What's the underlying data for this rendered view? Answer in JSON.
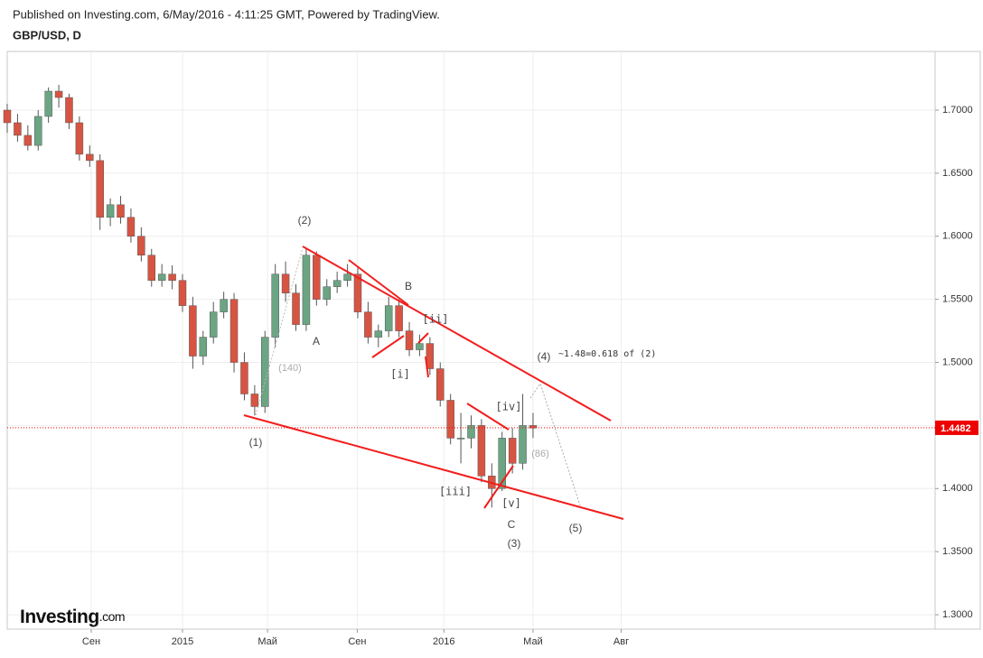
{
  "header": {
    "published": "Published on Investing.com, 6/May/2016 - 4:11:25 GMT, Powered by TradingView.",
    "symbol": "GBP/USD, D"
  },
  "logo": {
    "brand": "Investing",
    "suffix": ".com"
  },
  "chart_data": {
    "type": "candlestick",
    "up_color": "#6ba583",
    "down_color": "#d75442",
    "x": [
      0,
      2,
      4,
      6,
      8,
      10,
      12,
      14,
      16,
      18,
      20,
      22,
      24,
      26,
      28,
      30,
      32,
      34,
      36,
      38,
      40,
      42,
      44,
      46,
      48,
      50,
      52,
      54,
      56,
      58,
      60,
      62,
      64,
      66,
      68,
      70,
      72,
      74,
      76,
      78,
      80,
      82,
      84,
      86,
      88,
      90,
      92,
      94,
      96,
      98,
      100,
      102
    ],
    "open": [
      1.7,
      1.69,
      1.68,
      1.672,
      1.695,
      1.715,
      1.71,
      1.69,
      1.665,
      1.66,
      1.615,
      1.625,
      1.615,
      1.6,
      1.585,
      1.565,
      1.57,
      1.565,
      1.545,
      1.505,
      1.52,
      1.54,
      1.55,
      1.5,
      1.475,
      1.465,
      1.52,
      1.57,
      1.555,
      1.53,
      1.585,
      1.55,
      1.56,
      1.565,
      1.57,
      1.54,
      1.52,
      1.525,
      1.545,
      1.525,
      1.51,
      1.515,
      1.495,
      1.47,
      1.44,
      1.44,
      1.45,
      1.41,
      1.4,
      1.44,
      1.42,
      1.45
    ],
    "high": [
      1.705,
      1.697,
      1.688,
      1.7,
      1.718,
      1.72,
      1.713,
      1.695,
      1.672,
      1.665,
      1.63,
      1.632,
      1.622,
      1.607,
      1.59,
      1.578,
      1.577,
      1.57,
      1.552,
      1.525,
      1.548,
      1.556,
      1.555,
      1.508,
      1.482,
      1.525,
      1.578,
      1.58,
      1.562,
      1.59,
      1.588,
      1.566,
      1.572,
      1.578,
      1.575,
      1.548,
      1.53,
      1.552,
      1.55,
      1.532,
      1.522,
      1.52,
      1.5,
      1.475,
      1.46,
      1.458,
      1.455,
      1.42,
      1.445,
      1.448,
      1.475,
      1.46
    ],
    "low": [
      1.682,
      1.675,
      1.668,
      1.668,
      1.69,
      1.702,
      1.685,
      1.66,
      1.655,
      1.605,
      1.608,
      1.61,
      1.595,
      1.58,
      1.56,
      1.56,
      1.558,
      1.54,
      1.495,
      1.498,
      1.515,
      1.535,
      1.492,
      1.47,
      1.458,
      1.46,
      1.512,
      1.548,
      1.525,
      1.525,
      1.545,
      1.545,
      1.555,
      1.56,
      1.535,
      1.515,
      1.512,
      1.52,
      1.52,
      1.505,
      1.505,
      1.49,
      1.465,
      1.435,
      1.42,
      1.432,
      1.405,
      1.385,
      1.398,
      1.412,
      1.415,
      1.44
    ],
    "close": [
      1.69,
      1.68,
      1.672,
      1.695,
      1.715,
      1.71,
      1.69,
      1.665,
      1.66,
      1.615,
      1.625,
      1.615,
      1.6,
      1.585,
      1.565,
      1.57,
      1.565,
      1.545,
      1.505,
      1.52,
      1.54,
      1.55,
      1.5,
      1.475,
      1.465,
      1.52,
      1.57,
      1.555,
      1.53,
      1.585,
      1.55,
      1.56,
      1.565,
      1.57,
      1.54,
      1.52,
      1.525,
      1.545,
      1.525,
      1.51,
      1.515,
      1.495,
      1.47,
      1.44,
      1.44,
      1.45,
      1.41,
      1.4,
      1.44,
      1.42,
      1.45,
      1.448
    ],
    "xlim": [
      0,
      180
    ],
    "xticks": [
      {
        "value": 16.3,
        "label": "Сен"
      },
      {
        "value": 34,
        "label": "2015"
      },
      {
        "value": 50.5,
        "label": "Май"
      },
      {
        "value": 67.9,
        "label": "Сен"
      },
      {
        "value": 84.7,
        "label": "2016"
      },
      {
        "value": 102,
        "label": "Май"
      },
      {
        "value": 119.1,
        "label": "Авг"
      }
    ],
    "ylim": [
      1.2886,
      1.7465
    ],
    "yticks": [
      {
        "value": 1.3,
        "label": "1.3000"
      },
      {
        "value": 1.35,
        "label": "1.3500"
      },
      {
        "value": 1.4,
        "label": "1.4000"
      },
      {
        "value": 1.45,
        "label": "1.4500"
      },
      {
        "value": 1.5,
        "label": "1.5000"
      },
      {
        "value": 1.55,
        "label": "1.5500"
      },
      {
        "value": 1.6,
        "label": "1.6000"
      },
      {
        "value": 1.65,
        "label": "1.6500"
      },
      {
        "value": 1.7,
        "label": "1.7000"
      }
    ],
    "grid": true,
    "last_price": {
      "value": 1.4482,
      "label": "1.4482"
    },
    "annotations": [
      "(2)",
      "A",
      "B",
      "(140)",
      "[i]",
      "[ii]",
      "(1)",
      "[iii]",
      "[iv]",
      "[v]",
      "C",
      "(3)",
      "(86)",
      "(4)",
      "~1.48=0.618 of (2)",
      "(5)"
    ]
  }
}
